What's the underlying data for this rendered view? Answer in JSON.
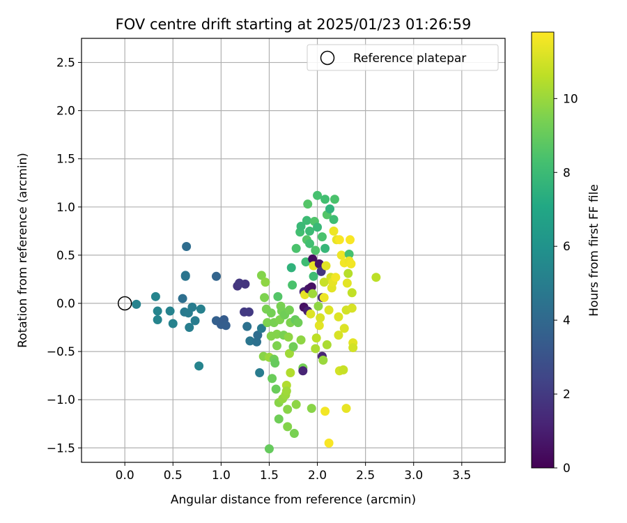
{
  "chart_data": {
    "type": "scatter",
    "title": "FOV centre drift starting at 2025/01/23 01:26:59",
    "xlabel": "Angular distance from reference (arcmin)",
    "ylabel": "Rotation from reference (arcmin)",
    "xlim": [
      -0.45,
      3.95
    ],
    "ylim": [
      -1.65,
      2.75
    ],
    "xticks": [
      "0.0",
      "0.5",
      "1.0",
      "1.5",
      "2.0",
      "2.5",
      "3.0",
      "3.5"
    ],
    "yticks": [
      "−1.5",
      "−1.0",
      "−0.5",
      "0.0",
      "0.5",
      "1.0",
      "1.5",
      "2.0",
      "2.5"
    ],
    "grid": true,
    "legend": {
      "placement": "top-right",
      "label": "Reference platepar"
    },
    "reference": {
      "x": 0.0,
      "y": 0.0
    },
    "colorbar": {
      "label": "Hours from first FF file",
      "min": 0,
      "max": 11.8,
      "ticks": [
        "0",
        "2",
        "4",
        "6",
        "8",
        "10"
      ],
      "colormap": "viridis"
    },
    "points": [
      [
        0.12,
        -0.01,
        5.2
      ],
      [
        0.32,
        0.07,
        5.3
      ],
      [
        0.34,
        -0.08,
        5.3
      ],
      [
        0.34,
        -0.17,
        5.3
      ],
      [
        0.47,
        -0.08,
        5.2
      ],
      [
        0.5,
        -0.21,
        5.2
      ],
      [
        0.6,
        0.05,
        4.3
      ],
      [
        0.63,
        0.29,
        4.6
      ],
      [
        0.63,
        0.28,
        4.6
      ],
      [
        0.64,
        0.59,
        4.2
      ],
      [
        0.62,
        -0.09,
        4.8
      ],
      [
        0.66,
        -0.1,
        4.9
      ],
      [
        0.67,
        -0.25,
        5.0
      ],
      [
        0.7,
        -0.04,
        4.9
      ],
      [
        0.73,
        -0.18,
        4.9
      ],
      [
        0.77,
        -0.65,
        5.3
      ],
      [
        0.79,
        -0.06,
        5.1
      ],
      [
        0.95,
        0.28,
        3.8
      ],
      [
        0.95,
        -0.18,
        3.6
      ],
      [
        1.0,
        -0.22,
        3.5
      ],
      [
        1.03,
        -0.17,
        3.4
      ],
      [
        1.05,
        -0.23,
        3.5
      ],
      [
        1.17,
        0.18,
        1.8
      ],
      [
        1.19,
        0.21,
        1.9
      ],
      [
        1.25,
        0.2,
        1.8
      ],
      [
        1.24,
        -0.09,
        2.0
      ],
      [
        1.29,
        -0.09,
        2.0
      ],
      [
        1.27,
        -0.24,
        4.4
      ],
      [
        1.3,
        -0.39,
        4.6
      ],
      [
        1.37,
        -0.4,
        4.4
      ],
      [
        1.38,
        -0.33,
        4.2
      ],
      [
        1.4,
        -0.72,
        4.9
      ],
      [
        1.42,
        -0.26,
        4.8
      ],
      [
        1.42,
        0.29,
        9.6
      ],
      [
        1.46,
        0.22,
        9.8
      ],
      [
        1.45,
        0.06,
        9.5
      ],
      [
        1.44,
        -0.55,
        9.7
      ],
      [
        1.47,
        -0.06,
        9.4
      ],
      [
        1.48,
        -0.2,
        9.5
      ],
      [
        1.5,
        -0.56,
        10.0
      ],
      [
        1.5,
        -1.51,
        9.0
      ],
      [
        1.52,
        -0.1,
        9.3
      ],
      [
        1.52,
        -0.34,
        9.6
      ],
      [
        1.53,
        -0.78,
        9.1
      ],
      [
        1.55,
        -0.2,
        9.4
      ],
      [
        1.55,
        -0.58,
        9.2
      ],
      [
        1.56,
        -0.62,
        9.0
      ],
      [
        1.57,
        -0.89,
        9.1
      ],
      [
        1.58,
        -0.32,
        9.6
      ],
      [
        1.58,
        -0.44,
        9.5
      ],
      [
        1.59,
        0.07,
        8.6
      ],
      [
        1.6,
        -1.03,
        9.7
      ],
      [
        1.6,
        -1.2,
        9.2
      ],
      [
        1.61,
        -0.17,
        9.5
      ],
      [
        1.62,
        -0.03,
        9.4
      ],
      [
        1.63,
        -0.08,
        9.3
      ],
      [
        1.64,
        -0.99,
        9.9
      ],
      [
        1.65,
        -0.33,
        9.4
      ],
      [
        1.66,
        -0.12,
        9.2
      ],
      [
        1.67,
        -0.95,
        10.0
      ],
      [
        1.68,
        -0.85,
        10.4
      ],
      [
        1.68,
        -0.91,
        10.1
      ],
      [
        1.69,
        -1.1,
        9.7
      ],
      [
        1.69,
        -1.28,
        9.6
      ],
      [
        1.7,
        -0.35,
        9.8
      ],
      [
        1.71,
        -0.52,
        10.1
      ],
      [
        1.71,
        -0.07,
        9.3
      ],
      [
        1.72,
        -0.72,
        10.4
      ],
      [
        1.72,
        -0.2,
        9.5
      ],
      [
        1.73,
        0.37,
        7.6
      ],
      [
        1.74,
        0.19,
        8.4
      ],
      [
        1.75,
        -0.45,
        9.2
      ],
      [
        1.76,
        -1.35,
        9.4
      ],
      [
        1.77,
        -0.17,
        9.0
      ],
      [
        1.78,
        -1.05,
        9.8
      ],
      [
        1.78,
        0.57,
        8.4
      ],
      [
        1.8,
        -0.2,
        9.2
      ],
      [
        1.82,
        0.74,
        8.2
      ],
      [
        1.83,
        0.8,
        7.9
      ],
      [
        1.83,
        -0.38,
        9.8
      ],
      [
        1.85,
        -0.67,
        9.3
      ],
      [
        1.85,
        -0.7,
        1.2
      ],
      [
        1.86,
        0.12,
        1.2
      ],
      [
        1.86,
        -0.04,
        0.5
      ],
      [
        1.87,
        0.09,
        11.4
      ],
      [
        1.88,
        0.43,
        8.1
      ],
      [
        1.89,
        0.86,
        8.0
      ],
      [
        1.89,
        0.66,
        8.6
      ],
      [
        1.9,
        -0.08,
        1.0
      ],
      [
        1.9,
        1.03,
        8.6
      ],
      [
        1.91,
        0.15,
        0.7
      ],
      [
        1.92,
        0.62,
        8.2
      ],
      [
        1.92,
        0.75,
        8.0
      ],
      [
        1.93,
        -0.11,
        11.2
      ],
      [
        1.94,
        0.17,
        0.5
      ],
      [
        1.94,
        -1.09,
        9.7
      ],
      [
        1.95,
        0.46,
        0.4
      ],
      [
        1.95,
        0.1,
        10.1
      ],
      [
        1.96,
        0.39,
        11.4
      ],
      [
        1.97,
        0.85,
        8.5
      ],
      [
        1.98,
        -0.47,
        10.3
      ],
      [
        1.98,
        0.55,
        8.5
      ],
      [
        1.99,
        -0.36,
        10.6
      ],
      [
        2.0,
        0.79,
        7.9
      ],
      [
        2.0,
        1.12,
        8.3
      ],
      [
        2.01,
        -0.03,
        9.8
      ],
      [
        2.02,
        -0.23,
        11.3
      ],
      [
        2.02,
        0.41,
        0.7
      ],
      [
        2.03,
        -0.15,
        11.1
      ],
      [
        2.04,
        0.33,
        1.8
      ],
      [
        2.05,
        0.06,
        1.5
      ],
      [
        2.05,
        -0.55,
        1.2
      ],
      [
        2.05,
        0.69,
        8.4
      ],
      [
        2.06,
        -0.59,
        10.0
      ],
      [
        2.07,
        0.06,
        11.5
      ],
      [
        2.07,
        0.22,
        10.8
      ],
      [
        2.08,
        -1.12,
        11.6
      ],
      [
        2.08,
        1.08,
        8.2
      ],
      [
        2.09,
        0.39,
        11.3
      ],
      [
        2.1,
        -0.43,
        10.3
      ],
      [
        2.1,
        0.92,
        8.6
      ],
      [
        2.12,
        -1.45,
        11.7
      ],
      [
        2.12,
        -0.07,
        11.2
      ],
      [
        2.13,
        0.98,
        7.6
      ],
      [
        2.14,
        0.27,
        11.0
      ],
      [
        2.15,
        0.16,
        11.3
      ],
      [
        2.16,
        0.22,
        11.4
      ],
      [
        2.17,
        0.87,
        8.1
      ],
      [
        2.17,
        0.75,
        11.5
      ],
      [
        2.18,
        1.08,
        8.4
      ],
      [
        2.19,
        0.27,
        11.6
      ],
      [
        2.2,
        0.66,
        11.4
      ],
      [
        2.22,
        -0.33,
        11.1
      ],
      [
        2.22,
        -0.14,
        11.2
      ],
      [
        2.23,
        -0.7,
        11.0
      ],
      [
        2.23,
        0.66,
        11.7
      ],
      [
        2.25,
        0.5,
        11.5
      ],
      [
        2.27,
        -0.69,
        10.8
      ],
      [
        2.28,
        -0.26,
        11.2
      ],
      [
        2.28,
        0.42,
        11.6
      ],
      [
        2.3,
        -1.09,
        11.4
      ],
      [
        2.3,
        -0.07,
        11.0
      ],
      [
        2.31,
        0.21,
        11.3
      ],
      [
        2.32,
        0.31,
        10.5
      ],
      [
        2.33,
        0.51,
        8.3
      ],
      [
        2.33,
        0.44,
        11.5
      ],
      [
        2.34,
        0.66,
        11.7
      ],
      [
        2.35,
        0.41,
        11.6
      ],
      [
        2.36,
        0.11,
        10.7
      ],
      [
        2.36,
        -0.05,
        11.1
      ],
      [
        2.37,
        -0.41,
        11.3
      ],
      [
        2.37,
        -0.46,
        11.0
      ],
      [
        2.61,
        0.27,
        10.6
      ],
      [
        1.96,
        0.28,
        8.1
      ],
      [
        2.08,
        0.57,
        7.8
      ]
    ]
  }
}
